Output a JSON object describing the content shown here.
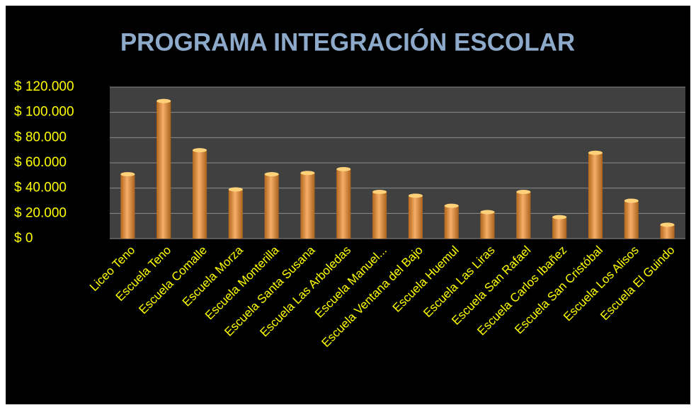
{
  "chart_data": {
    "type": "bar",
    "title": "PROGRAMA INTEGRACIÓN ESCOLAR",
    "categories": [
      "Liceo Teno",
      "Escuela Teno",
      "Escuela Comalle",
      "Escuela Morza",
      "Escuela Monterilla",
      "Escuela Santa Susana",
      "Escuela Las Arboledas",
      "Escuela Manuel...",
      "Escuela Ventana del Bajo",
      "Escuela Huemul",
      "Escuela Las Liras",
      "Escuela San Rafael",
      "Escuela Carlos Ibañez",
      "Escuela San Cristóbal",
      "Escuela Los Alisos",
      "Escuela El Guindo"
    ],
    "values": [
      51000,
      109000,
      70000,
      39000,
      51000,
      52000,
      55000,
      37000,
      34000,
      26000,
      21000,
      37000,
      17000,
      68000,
      30000,
      11000
    ],
    "color": "#f28c28",
    "ylim": [
      0,
      120000
    ],
    "yticks": [
      {
        "value": 0,
        "label": "$ 0"
      },
      {
        "value": 20000,
        "label": "$ 20.000"
      },
      {
        "value": 40000,
        "label": "$ 40.000"
      },
      {
        "value": 60000,
        "label": "$ 60.000"
      },
      {
        "value": 80000,
        "label": "$ 80.000"
      },
      {
        "value": 100000,
        "label": "$ 100.000"
      },
      {
        "value": 120000,
        "label": "$ 120.000"
      }
    ],
    "grid": true
  }
}
